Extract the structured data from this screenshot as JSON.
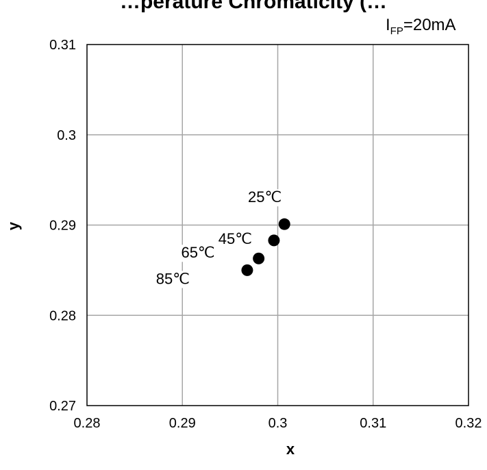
{
  "chart_data": {
    "type": "scatter",
    "title": "…perature Chromaticity (…",
    "condition": {
      "main": "I",
      "sub": "FP",
      "rest": "=20mA"
    },
    "xlabel": "x",
    "ylabel": "y",
    "xlim": [
      0.28,
      0.32
    ],
    "ylim": [
      0.27,
      0.31
    ],
    "xticks": [
      "0.28",
      "0.29",
      "0.3",
      "0.31",
      "0.32"
    ],
    "yticks": [
      "0.27",
      "0.28",
      "0.29",
      "0.3",
      "0.31"
    ],
    "grid": true,
    "points": [
      {
        "label": "25℃",
        "x": 0.3007,
        "y": 0.2901
      },
      {
        "label": "45℃",
        "x": 0.2996,
        "y": 0.2883
      },
      {
        "label": "65℃",
        "x": 0.298,
        "y": 0.2863
      },
      {
        "label": "85℃",
        "x": 0.2968,
        "y": 0.285
      }
    ],
    "marker_color": "#000000"
  }
}
